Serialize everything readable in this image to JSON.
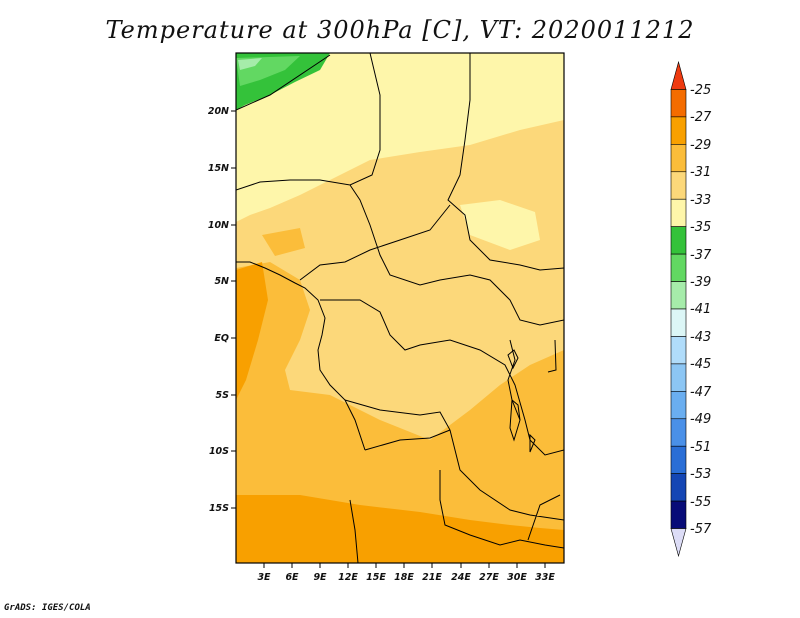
{
  "title": "Temperature at 300hPa [C], VT: 2020011212",
  "credit": "GrADS: IGES/COLA",
  "map": {
    "lat_labels": [
      "20N",
      "15N",
      "10N",
      "5N",
      "EQ",
      "5S",
      "10S",
      "15S"
    ],
    "lon_labels": [
      "3E",
      "6E",
      "9E",
      "12E",
      "15E",
      "18E",
      "21E",
      "24E",
      "27E",
      "30E",
      "33E"
    ]
  },
  "colorbar": {
    "labels": [
      "-25",
      "-27",
      "-29",
      "-31",
      "-33",
      "-35",
      "-37",
      "-39",
      "-41",
      "-43",
      "-45",
      "-47",
      "-49",
      "-51",
      "-53",
      "-55",
      "-57"
    ],
    "colors": [
      "#ee3a10",
      "#f46c00",
      "#f8a000",
      "#fbbd3a",
      "#fcd87a",
      "#fef6aa",
      "#34c23a",
      "#62d862",
      "#a6ecaa",
      "#dcf6f6",
      "#b0dcfa",
      "#8cc6f4",
      "#6aaef0",
      "#4a90e8",
      "#2a6ed6",
      "#1446b4",
      "#080c78",
      "#dcdcf6"
    ]
  }
}
